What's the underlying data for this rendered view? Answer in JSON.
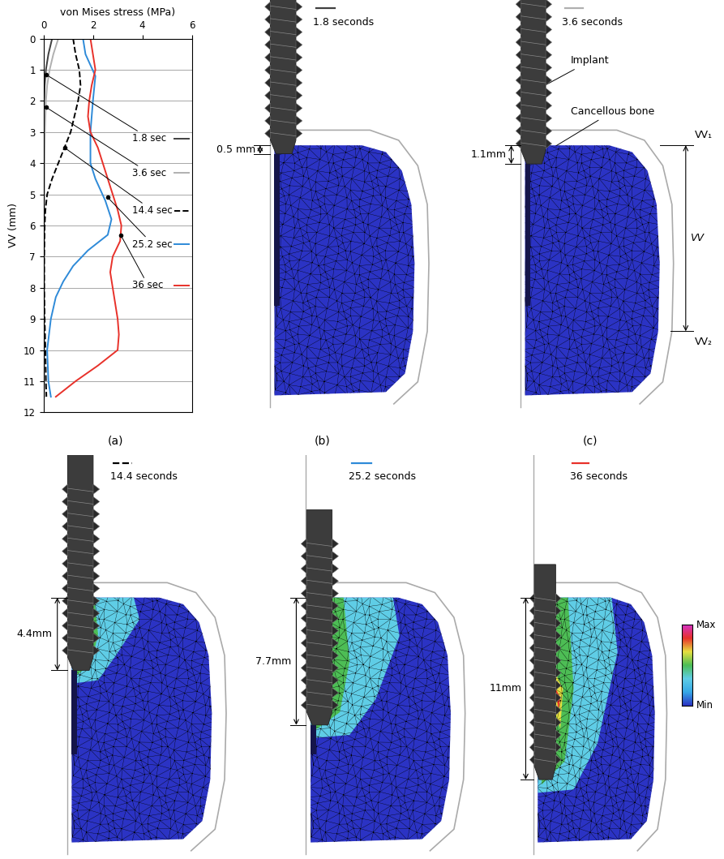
{
  "chart_data": {
    "type": "line",
    "panel_label": "(a)",
    "xlabel": "von Mises stress (MPa)",
    "ylabel": "VV (mm)",
    "xlim": [
      0,
      6
    ],
    "xticks": [
      0,
      2,
      4,
      6
    ],
    "ylim": [
      12,
      0
    ],
    "yticks": [
      0,
      1,
      2,
      3,
      4,
      5,
      6,
      7,
      8,
      9,
      10,
      11,
      12
    ],
    "grid": true,
    "series": [
      {
        "name": "1.8 sec",
        "color": "#404040",
        "line_style": "solid",
        "x": [
          0.35,
          0.2,
          0.1,
          0.05,
          0.03,
          0.02,
          0.02,
          0.02,
          0.02,
          0.02,
          0.02,
          0.02,
          0.02,
          0.02,
          0.02
        ],
        "values": [
          0,
          0.5,
          1,
          1.5,
          2,
          3,
          4,
          5,
          6,
          7,
          8,
          9,
          10,
          11,
          11.5
        ],
        "label_at": [
          0.1,
          1.15
        ]
      },
      {
        "name": "3.6 sec",
        "color": "#b0b0b0",
        "line_style": "solid",
        "x": [
          0.6,
          0.4,
          0.25,
          0.15,
          0.1,
          0.06,
          0.04,
          0.03,
          0.03,
          0.03,
          0.03,
          0.03,
          0.03,
          0.03,
          0.03
        ],
        "values": [
          0,
          0.5,
          1,
          1.5,
          2,
          3,
          4,
          5,
          6,
          7,
          8,
          9,
          10,
          11,
          11.5
        ],
        "label_at": [
          0.1,
          2.2
        ]
      },
      {
        "name": "14.4 sec",
        "color": "#000000",
        "line_style": "dashed",
        "x": [
          1.2,
          1.3,
          1.45,
          1.5,
          1.4,
          1.25,
          1.1,
          0.85,
          0.6,
          0.35,
          0.15,
          0.08,
          0.05,
          0.03,
          0.03,
          0.05,
          0.08,
          0.1,
          0.12
        ],
        "values": [
          0,
          0.5,
          1,
          1.5,
          2,
          2.5,
          3,
          3.5,
          4,
          4.5,
          5,
          5.5,
          6,
          7,
          8,
          9,
          10,
          11,
          11.5
        ],
        "label_at": [
          0.85,
          3.5
        ]
      },
      {
        "name": "25.2 sec",
        "color": "#2e8ad8",
        "line_style": "solid",
        "x": [
          1.6,
          1.7,
          2.1,
          2.0,
          1.9,
          1.9,
          2.1,
          2.5,
          2.75,
          2.6,
          1.8,
          1.2,
          0.8,
          0.5,
          0.3,
          0.15,
          0.2,
          0.3
        ],
        "values": [
          0,
          0.5,
          1.2,
          2,
          3,
          4,
          4.5,
          5.2,
          5.8,
          6.3,
          6.8,
          7.3,
          7.8,
          8.3,
          9,
          10,
          11,
          11.5
        ],
        "label_at": [
          2.6,
          5.1
        ]
      },
      {
        "name": "36 sec",
        "color": "#e8312a",
        "line_style": "solid",
        "x": [
          1.9,
          2.0,
          2.1,
          1.95,
          1.85,
          1.8,
          1.9,
          2.2,
          2.4,
          2.6,
          2.8,
          3.0,
          3.15,
          3.1,
          2.8,
          2.7,
          2.8,
          2.9,
          3.0,
          3.05,
          3.0,
          2.2,
          1.3,
          0.5
        ],
        "values": [
          0,
          0.5,
          1,
          1.5,
          2,
          2.5,
          3,
          3.5,
          4,
          4.5,
          5,
          5.5,
          6,
          6.5,
          7,
          7.5,
          8,
          8.5,
          9,
          9.5,
          10,
          10.5,
          11,
          11.5
        ],
        "label_at": [
          3.12,
          6.3
        ]
      }
    ]
  },
  "panels": [
    {
      "label": "(b)",
      "time_label": "1.8 seconds",
      "color": "#404040",
      "line_style": "solid",
      "depth": 0.5,
      "depth_label": "0.5 mm"
    },
    {
      "label": "(c)",
      "time_label": "3.6 seconds",
      "color": "#b0b0b0",
      "line_style": "solid",
      "depth": 1.1,
      "depth_label": "1.1mm",
      "annotations": {
        "implant": "Implant",
        "bone": "Cancellous bone",
        "vv1": "VV₁",
        "vv": "VV",
        "vv2": "VV₂"
      }
    },
    {
      "time_label": "14.4 seconds",
      "color": "#000000",
      "line_style": "dashed",
      "depth": 4.4,
      "depth_label": "4.4mm"
    },
    {
      "time_label": "25.2 seconds",
      "color": "#2e8ad8",
      "line_style": "solid",
      "depth": 7.7,
      "depth_label": "7.7mm"
    },
    {
      "time_label": "36 seconds",
      "color": "#e8312a",
      "line_style": "solid",
      "depth": 11,
      "depth_label": "11mm",
      "colorbar": {
        "max": "Max",
        "min": "Min"
      }
    }
  ]
}
